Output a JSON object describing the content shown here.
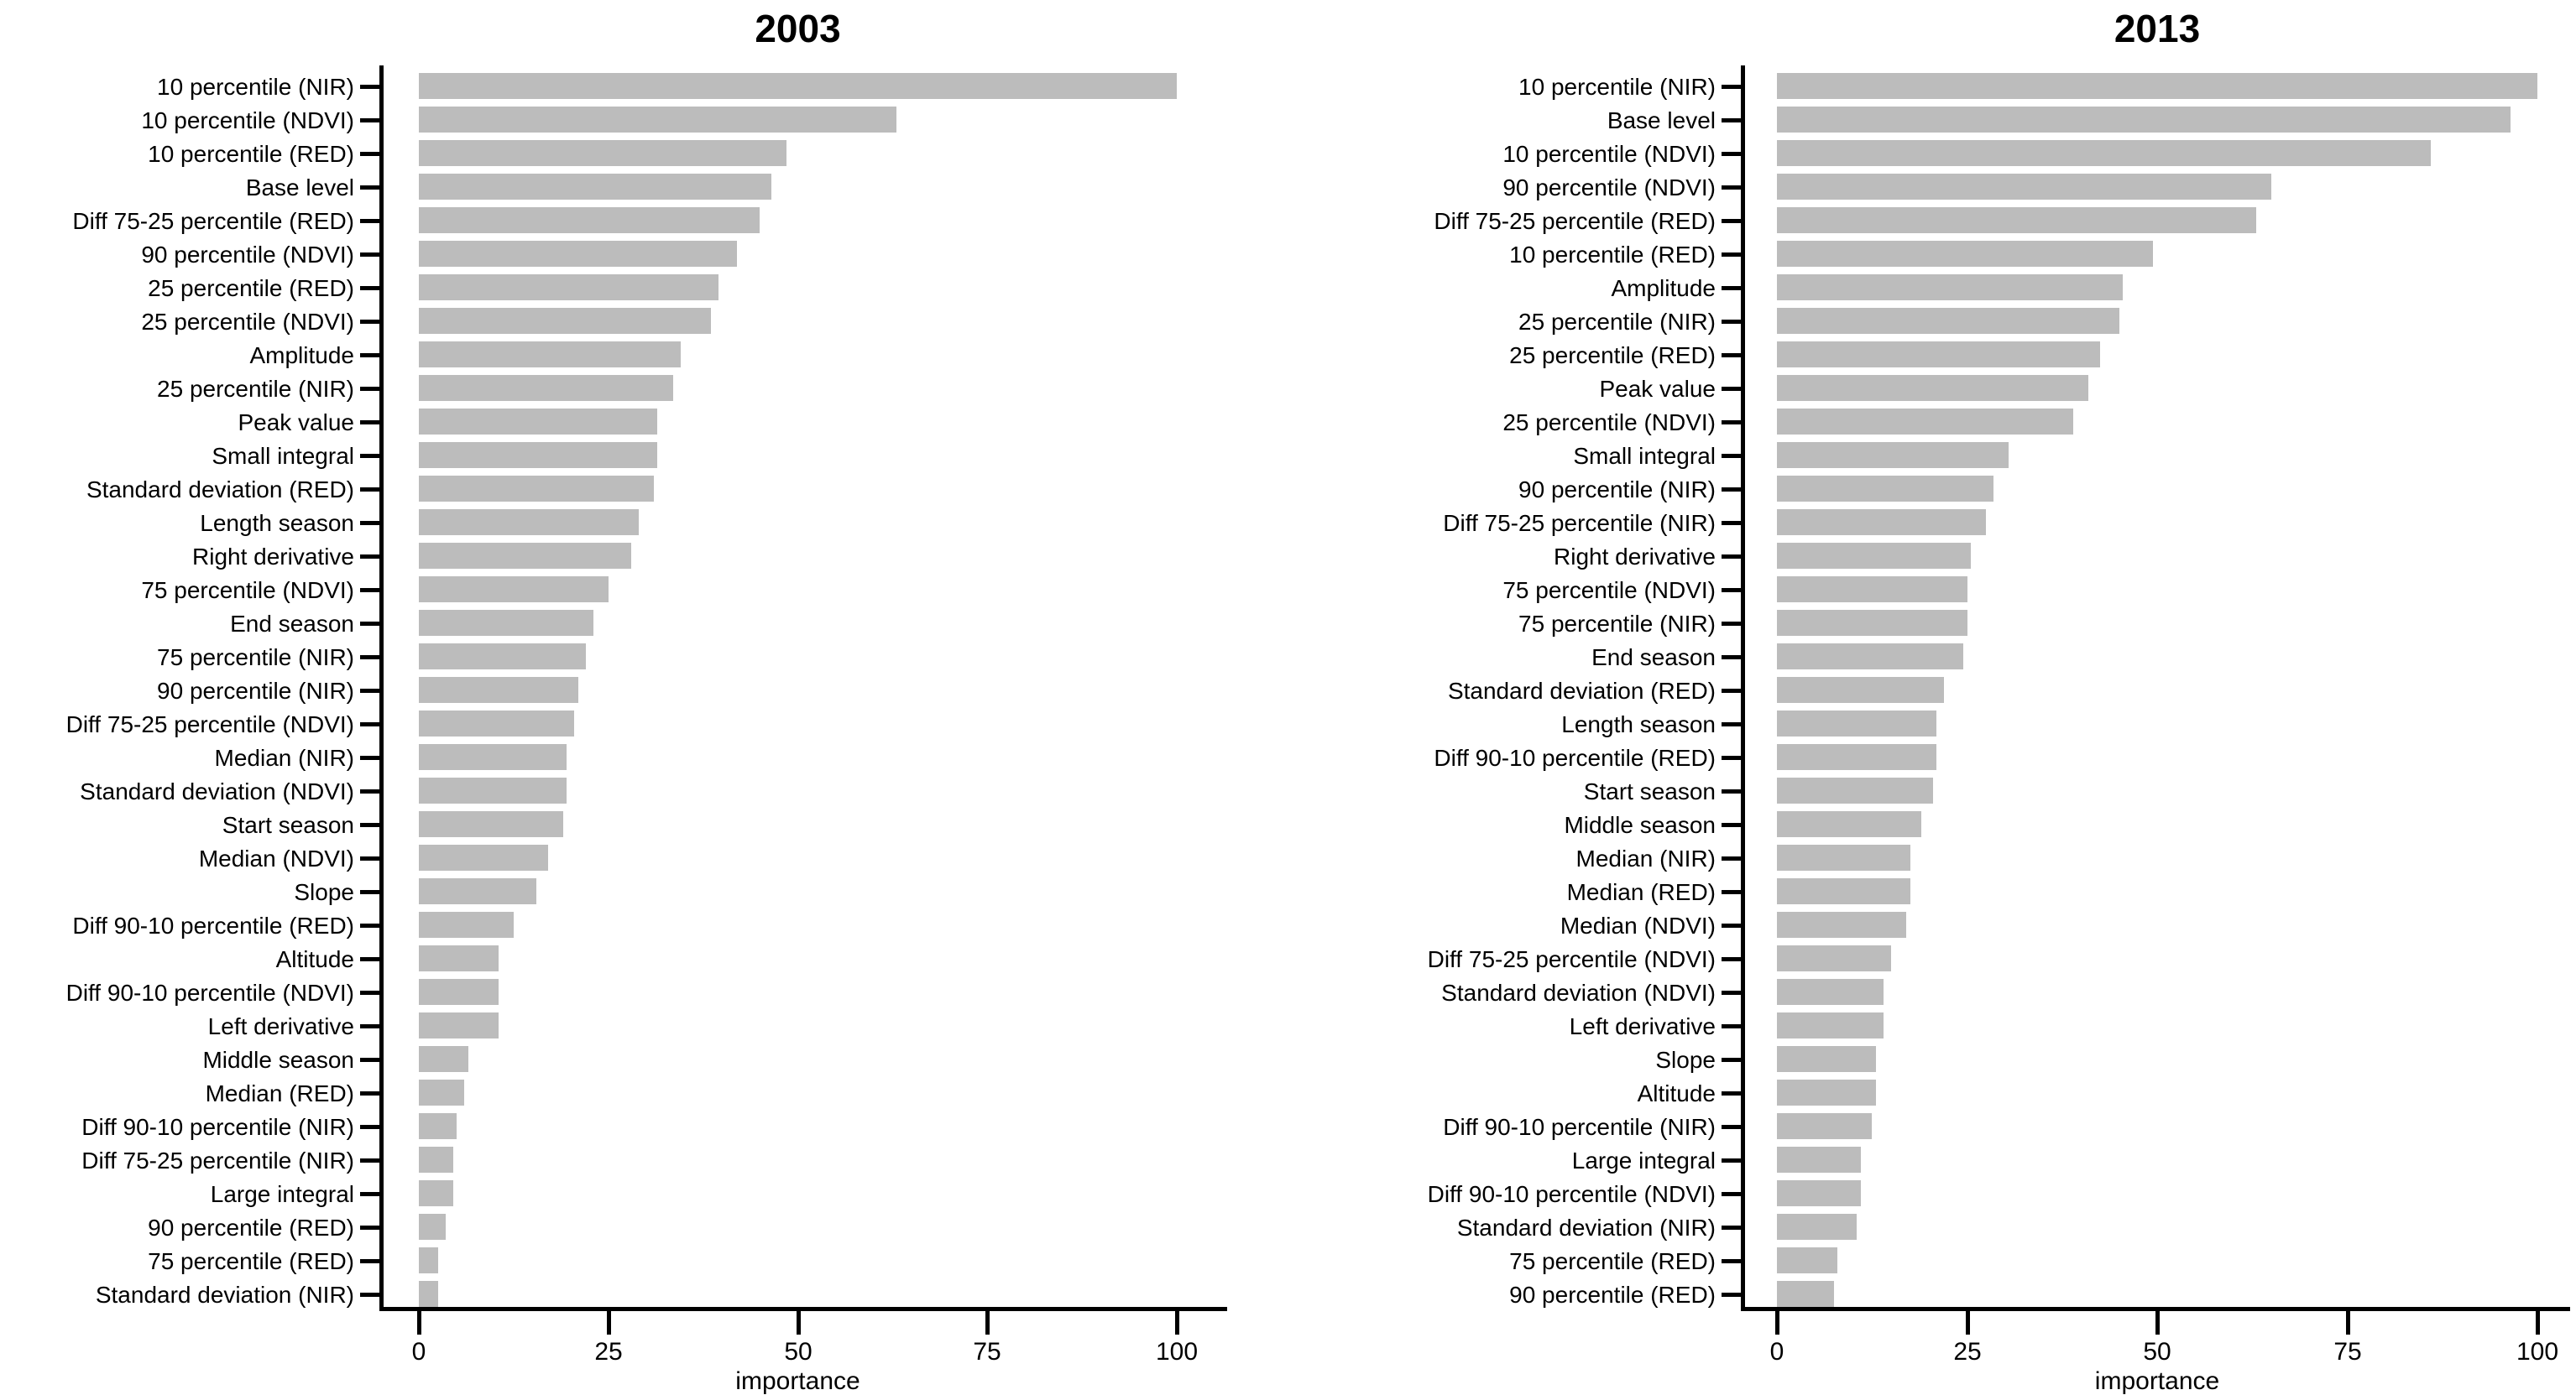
{
  "figure": {
    "background_color": "#ffffff",
    "bar_color": "#bcbcbc",
    "axis_color": "#000000",
    "text_color": "#000000"
  },
  "chart_data": [
    {
      "type": "bar",
      "orientation": "horizontal",
      "title": "2003",
      "xlabel": "importance",
      "xlim": [
        0,
        100
      ],
      "xticks": [
        0,
        25,
        50,
        75,
        100
      ],
      "grid": false,
      "legend": "none",
      "categories": [
        "10 percentile (NIR)",
        "10 percentile (NDVI)",
        "10 percentile (RED)",
        "Base level",
        "Diff 75-25 percentile (RED)",
        "90 percentile (NDVI)",
        "25 percentile (RED)",
        "25 percentile (NDVI)",
        "Amplitude",
        "25 percentile (NIR)",
        "Peak value",
        "Small integral",
        "Standard deviation (RED)",
        "Length season",
        "Right derivative",
        "75 percentile (NDVI)",
        "End season",
        "75 percentile (NIR)",
        "90 percentile (NIR)",
        "Diff 75-25 percentile (NDVI)",
        "Median (NIR)",
        "Standard deviation (NDVI)",
        "Start season",
        "Median (NDVI)",
        "Slope",
        "Diff 90-10 percentile (RED)",
        "Altitude",
        "Diff 90-10 percentile (NDVI)",
        "Left derivative",
        "Middle season",
        "Median (RED)",
        "Diff 90-10 percentile (NIR)",
        "Diff 75-25 percentile (NIR)",
        "Large integral",
        "90 percentile (RED)",
        "75 percentile (RED)",
        "Standard deviation (NIR)"
      ],
      "values": [
        100,
        63,
        48.5,
        46.5,
        45,
        42,
        39.5,
        38.5,
        34.5,
        33.5,
        31.5,
        31.5,
        31,
        29,
        28,
        25,
        23,
        22,
        21,
        20.5,
        19.5,
        19.5,
        19,
        17,
        15.5,
        12.5,
        10.5,
        10.5,
        10.5,
        6.5,
        6,
        5,
        4.5,
        4.5,
        3.5,
        2.5,
        2.5
      ]
    },
    {
      "type": "bar",
      "orientation": "horizontal",
      "title": "2013",
      "xlabel": "importance",
      "xlim": [
        0,
        100
      ],
      "xticks": [
        0,
        25,
        50,
        75,
        100
      ],
      "grid": false,
      "legend": "none",
      "categories": [
        "10 percentile (NIR)",
        "Base level",
        "10 percentile (NDVI)",
        "90 percentile (NDVI)",
        "Diff 75-25 percentile (RED)",
        "10 percentile (RED)",
        "Amplitude",
        "25 percentile (NIR)",
        "25 percentile (RED)",
        "Peak value",
        "25 percentile (NDVI)",
        "Small integral",
        "90 percentile (NIR)",
        "Diff 75-25 percentile (NIR)",
        "Right derivative",
        "75 percentile (NDVI)",
        "75 percentile (NIR)",
        "End season",
        "Standard deviation (RED)",
        "Length season",
        "Diff 90-10 percentile (RED)",
        "Start season",
        "Middle season",
        "Median (NIR)",
        "Median (RED)",
        "Median (NDVI)",
        "Diff 75-25 percentile (NDVI)",
        "Standard deviation (NDVI)",
        "Left derivative",
        "Slope",
        "Altitude",
        "Diff 90-10 percentile (NIR)",
        "Large integral",
        "Diff 90-10 percentile (NDVI)",
        "Standard deviation (NIR)",
        "75 percentile (RED)",
        "90 percentile (RED)"
      ],
      "values": [
        100,
        96.5,
        86,
        65,
        63,
        49.5,
        45.5,
        45,
        42.5,
        41,
        39,
        30.5,
        28.5,
        27.5,
        25.5,
        25,
        25,
        24.5,
        22,
        21,
        21,
        20.5,
        19,
        17.5,
        17.5,
        17,
        15,
        14,
        14,
        13,
        13,
        12.5,
        11,
        11,
        10.5,
        8,
        7.5
      ]
    }
  ]
}
